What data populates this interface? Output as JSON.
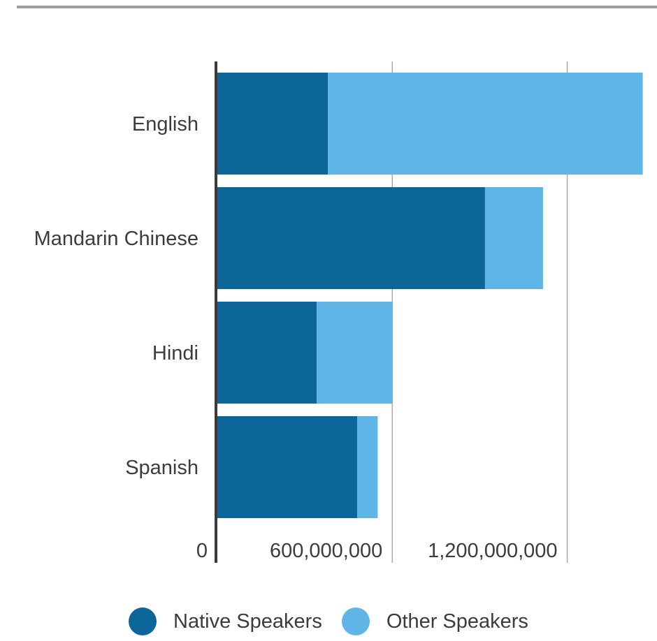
{
  "chart_data": {
    "type": "bar",
    "orientation": "horizontal",
    "stacked": true,
    "categories": [
      "English",
      "Mandarin Chinese",
      "Hindi",
      "Spanish"
    ],
    "series": [
      {
        "name": "Native Speakers",
        "color": "#0d6699",
        "values": [
          379000000,
          918000000,
          341000000,
          480000000
        ]
      },
      {
        "name": "Other Speakers",
        "color": "#5fb6e6",
        "values": [
          1080000000,
          199000000,
          259000000,
          70000000
        ]
      }
    ],
    "xlim": [
      0,
      1460000000
    ],
    "x_ticks": [
      {
        "value": 0,
        "label": "0"
      },
      {
        "value": 600000000,
        "label": "600,000,000"
      },
      {
        "value": 1200000000,
        "label": "1,200,000,000"
      }
    ],
    "grid": true,
    "legend_position": "bottom"
  }
}
